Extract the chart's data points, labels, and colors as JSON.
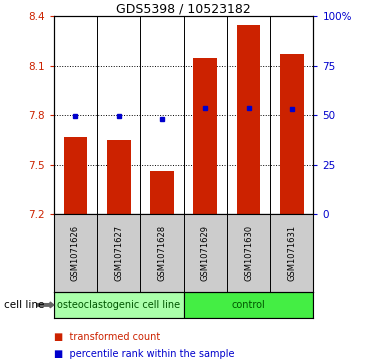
{
  "title": "GDS5398 / 10523182",
  "samples": [
    "GSM1071626",
    "GSM1071627",
    "GSM1071628",
    "GSM1071629",
    "GSM1071630",
    "GSM1071631"
  ],
  "bar_bottoms": [
    7.2,
    7.2,
    7.2,
    7.2,
    7.2,
    7.2
  ],
  "bar_tops": [
    7.67,
    7.65,
    7.46,
    8.15,
    8.35,
    8.17
  ],
  "bar_color": "#cc2200",
  "dot_values": [
    7.795,
    7.795,
    7.775,
    7.845,
    7.845,
    7.84
  ],
  "dot_color": "#0000cc",
  "ylim_left": [
    7.2,
    8.4
  ],
  "ylim_right": [
    0,
    100
  ],
  "yticks_left": [
    7.2,
    7.5,
    7.8,
    8.1,
    8.4
  ],
  "ytick_labels_left": [
    "7.2",
    "7.5",
    "7.8",
    "8.1",
    "8.4"
  ],
  "yticks_right": [
    0,
    25,
    50,
    75,
    100
  ],
  "ytick_labels_right": [
    "0",
    "25",
    "50",
    "75",
    "100%"
  ],
  "groups": [
    {
      "label": "osteoclastogenic cell line",
      "start": 0,
      "end": 3,
      "color": "#aaffaa"
    },
    {
      "label": "control",
      "start": 3,
      "end": 6,
      "color": "#44ee44"
    }
  ],
  "cell_line_label": "cell line",
  "legend_items": [
    {
      "label": "transformed count",
      "color": "#cc2200"
    },
    {
      "label": "percentile rank within the sample",
      "color": "#0000cc"
    }
  ],
  "bar_width": 0.55,
  "bg_color": "#ffffff",
  "plot_bg_color": "#ffffff",
  "label_area_color": "#cccccc",
  "arrow_color": "#666666",
  "title_fontsize": 9,
  "tick_fontsize": 7.5,
  "sample_fontsize": 6,
  "group_fontsize": 7,
  "legend_fontsize": 7
}
